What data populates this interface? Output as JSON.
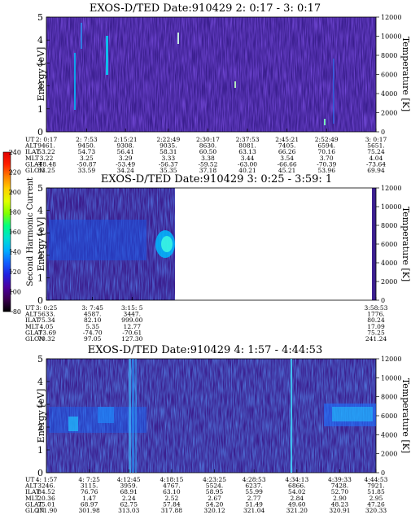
{
  "colorbar": {
    "label": "Second Harmonic Current",
    "ticks": [
      "240",
      "220",
      "200",
      "180",
      "160",
      "140",
      "120",
      "100",
      "80"
    ],
    "colors": [
      "#000000",
      "#3a0050",
      "#4b00a0",
      "#2020e0",
      "#1060ff",
      "#00b0ff",
      "#00e0d0",
      "#00ff80",
      "#80ff00",
      "#e0ff00",
      "#ffd000",
      "#ff8000",
      "#ff2000",
      "#e00000"
    ]
  },
  "chart_data": [
    {
      "type": "heatmap",
      "title": "EXOS-D/TED   Date:910429  2: 0:17 - 3: 0:17",
      "ylabel": "Energy [eV]",
      "y2label": "Temperature [K]",
      "ylim": [
        0,
        5
      ],
      "y2lim": [
        0,
        12000
      ],
      "yticks": [
        "0",
        "1",
        "2",
        "3",
        "4",
        "5"
      ],
      "y2ticks": [
        "0",
        "2000",
        "4000",
        "6000",
        "8000",
        "10000",
        "12000"
      ],
      "orbit_table": {
        "labels": [
          "UT",
          "ALT",
          "ILAT",
          "MLT",
          "GLAT",
          "GLON"
        ],
        "columns": [
          [
            "2: 0:17",
            "9461.",
            "53.22",
            "3.22",
            "-48.48",
            "33.25"
          ],
          [
            "2: 7:53",
            "9450.",
            "54.73",
            "3.25",
            "-50.87",
            "33.59"
          ],
          [
            "2:15:21",
            "9308.",
            "56.41",
            "3.29",
            "-53.49",
            "34.24"
          ],
          [
            "2:22:49",
            "9035.",
            "58.31",
            "3.33",
            "-56.37",
            "35.35"
          ],
          [
            "2:30:17",
            "8630.",
            "60.50",
            "3.38",
            "-59.52",
            "37.18"
          ],
          [
            "2:37:53",
            "8081.",
            "63.13",
            "3.44",
            "-63.00",
            "40.21"
          ],
          [
            "2:45:21",
            "7405.",
            "66.26",
            "3.54",
            "-66.66",
            "45.21"
          ],
          [
            "2:52:49",
            "6594.",
            "70.16",
            "3.70",
            "-70.39",
            "53.96"
          ],
          [
            "3: 0:17",
            "5651.",
            "75.24",
            "4.04",
            "-73.64",
            "69.94"
          ]
        ]
      }
    },
    {
      "type": "heatmap",
      "title": "EXOS-D/TED   Date:910429  3: 0:25 - 3:59: 1",
      "ylabel": "Energy [eV]",
      "y2label": "Temperature [K]",
      "ylim": [
        0,
        5
      ],
      "y2lim": [
        0,
        12000
      ],
      "yticks": [
        "0",
        "1",
        "2",
        "3",
        "4",
        "5"
      ],
      "y2ticks": [
        "0",
        "2000",
        "4000",
        "6000",
        "8000",
        "10000",
        "12000"
      ],
      "orbit_table": {
        "labels": [
          "UT",
          "ALT",
          "ILAT",
          "MLT",
          "GLAT",
          "GLON"
        ],
        "columns": [
          [
            "3: 0:25",
            "5633.",
            "75.34",
            "4.05",
            "-73.69",
            "70.32"
          ],
          [
            "3: 7:45",
            "4587.",
            "82.10",
            "5.35",
            "-74.70",
            "97.05"
          ],
          [
            "3:15: 5",
            "3447.",
            "999.00",
            "12.77",
            "-70.61",
            "127.30"
          ],
          [
            "3:58:53",
            "1776.",
            "80.24",
            "17.09",
            "75.25",
            "241.24"
          ]
        ]
      }
    },
    {
      "type": "heatmap",
      "title": "EXOS-D/TED   Date:910429  4: 1:57 - 4:44:53",
      "ylabel": "Energy [eV]",
      "y2label": "Temperature [K]",
      "ylim": [
        0,
        5
      ],
      "y2lim": [
        0,
        12000
      ],
      "yticks": [
        "0",
        "1",
        "2",
        "3",
        "4",
        "5"
      ],
      "y2ticks": [
        "0",
        "2000",
        "4000",
        "6000",
        "8000",
        "10000",
        "12000"
      ],
      "orbit_table": {
        "labels": [
          "UT",
          "ALT",
          "ILAT",
          "MLT",
          "GLAT",
          "GLON"
        ],
        "columns": [
          [
            "4: 1:57",
            "3246.",
            "84.52",
            "20.36",
            "75.01",
            "271.90"
          ],
          [
            "4: 7:25",
            "3115.",
            "76.76",
            "1.47",
            "68.97",
            "301.98"
          ],
          [
            "4:12:45",
            "3959.",
            "68.91",
            "2.24",
            "62.75",
            "313.03"
          ],
          [
            "4:18:15",
            "4767.",
            "63.10",
            "2.52",
            "57.84",
            "317.88"
          ],
          [
            "4:23:25",
            "5524.",
            "58.95",
            "2.67",
            "54.20",
            "320.12"
          ],
          [
            "4:28:53",
            "6237.",
            "55.99",
            "2.77",
            "51.49",
            "321.04"
          ],
          [
            "4:34:13",
            "6866.",
            "54.02",
            "2.84",
            "49.60",
            "321.20"
          ],
          [
            "4:39:33",
            "7428.",
            "52.70",
            "2.90",
            "48.23",
            "320.91"
          ],
          [
            "4:44:53",
            "7921.",
            "51.85",
            "2.95",
            "47.26",
            "320.33"
          ]
        ]
      }
    }
  ]
}
